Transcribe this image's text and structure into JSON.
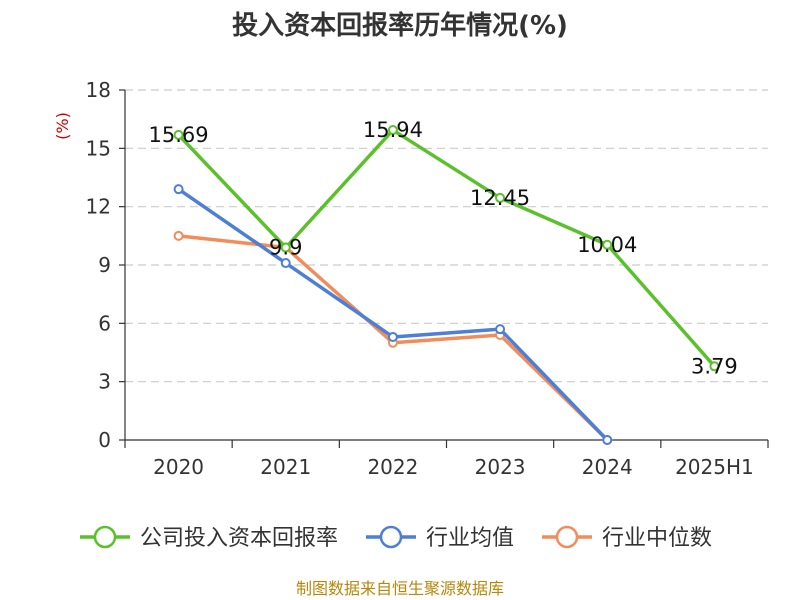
{
  "chart_data": {
    "type": "line",
    "title": "投入资本回报率历年情况(%)",
    "ylabel": "(%)",
    "xlabel": "",
    "categories": [
      "2020",
      "2021",
      "2022",
      "2023",
      "2024",
      "2025H1"
    ],
    "ylim": [
      0,
      18
    ],
    "yticks": [
      0,
      3,
      6,
      9,
      12,
      15,
      18
    ],
    "grid": true,
    "legend_position": "bottom",
    "series": [
      {
        "name": "公司投入资本回报率",
        "color": "#5ac12a",
        "values": [
          15.69,
          9.9,
          15.94,
          12.45,
          10.04,
          3.79
        ],
        "labels": [
          "15.69",
          "9.9",
          "15.94",
          "12.45",
          "10.04",
          "3.79"
        ]
      },
      {
        "name": "行业均值",
        "color": "#4d7fd6",
        "values": [
          12.9,
          9.1,
          5.3,
          5.7,
          0,
          null
        ]
      },
      {
        "name": "行业中位数",
        "color": "#f28c5a",
        "values": [
          10.5,
          9.9,
          5.0,
          5.4,
          0,
          null
        ]
      }
    ]
  },
  "source_text": "制图数据来自恒生聚源数据库"
}
